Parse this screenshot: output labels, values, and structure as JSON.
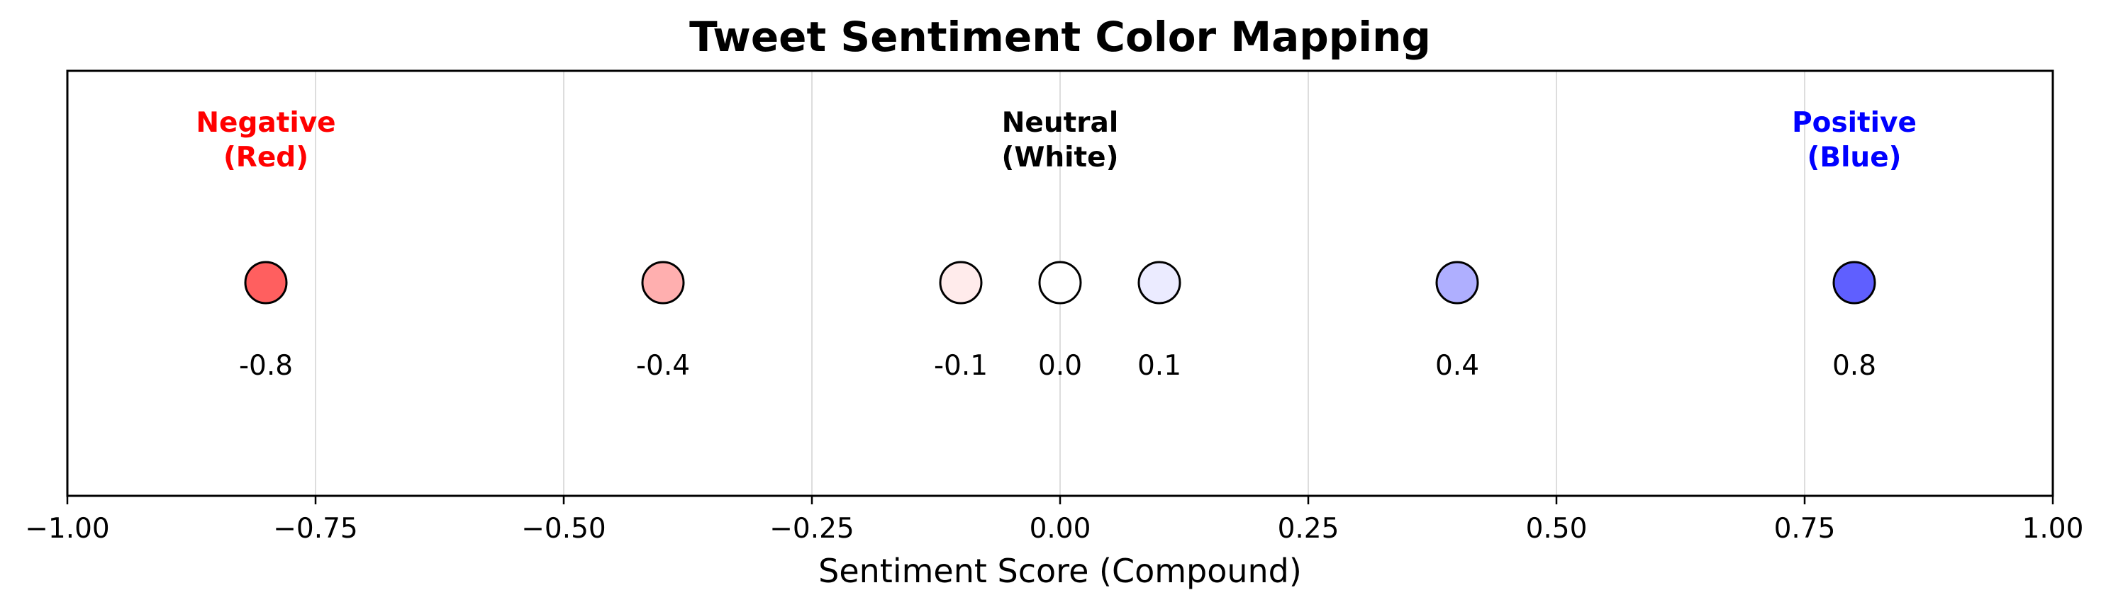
{
  "chart_data": {
    "type": "scatter",
    "title": "Tweet Sentiment Color Mapping",
    "xlabel": "Sentiment Score (Compound)",
    "ylabel": "",
    "xlim": [
      -1.0,
      1.0
    ],
    "xticks": [
      -1.0,
      -0.75,
      -0.5,
      -0.25,
      0.0,
      0.25,
      0.5,
      0.75,
      1.0
    ],
    "xtick_labels": [
      "−1.00",
      "−0.75",
      "−0.50",
      "−0.25",
      "0.00",
      "0.25",
      "0.50",
      "0.75",
      "1.00"
    ],
    "grid": "vertical",
    "points": [
      {
        "x": -0.8,
        "label": "-0.8",
        "color": "#ff5f5f"
      },
      {
        "x": -0.4,
        "label": "-0.4",
        "color": "#ffafaf"
      },
      {
        "x": -0.1,
        "label": "-0.1",
        "color": "#ffebeb"
      },
      {
        "x": 0.0,
        "label": "0.0",
        "color": "#ffffff"
      },
      {
        "x": 0.1,
        "label": "0.1",
        "color": "#ebebff"
      },
      {
        "x": 0.4,
        "label": "0.4",
        "color": "#afafff"
      },
      {
        "x": 0.8,
        "label": "0.8",
        "color": "#5f5fff"
      }
    ],
    "annotations": [
      {
        "x": -0.8,
        "lines": [
          "Negative",
          "(Red)"
        ],
        "color": "#ff0000"
      },
      {
        "x": 0.0,
        "lines": [
          "Neutral",
          "(White)"
        ],
        "color": "#000000"
      },
      {
        "x": 0.8,
        "lines": [
          "Positive",
          "(Blue)"
        ],
        "color": "#0000ff"
      }
    ]
  }
}
